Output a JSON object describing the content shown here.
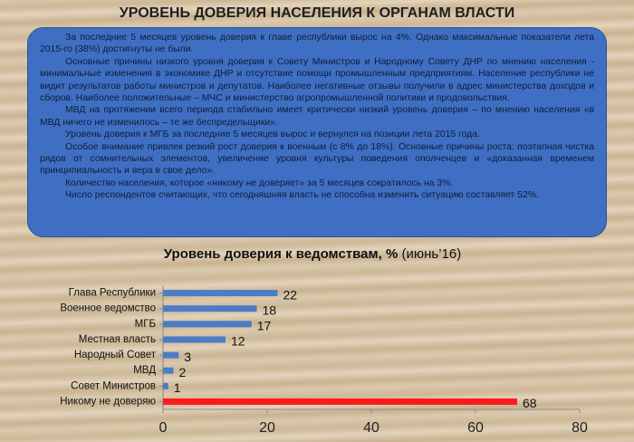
{
  "header": {
    "title": "УРОВЕНЬ ДОВЕРИЯ НАСЕЛЕНИЯ К ОРГАНАМ ВЛАСТИ"
  },
  "summary": {
    "paragraphs": [
      "За последние 5 месяцев уровень доверия к главе республики вырос на 4%. Однако максимальные показатели лета 2015-го (38%) достигнуты не были.",
      "Основные причины низкого уровня доверия к Совету Министров и Народному Совету ДНР по мнению населения - минимальные изменения в экономике ДНР и отсутствие помощи промышленным предприятиям. Население республики не видит результатов работы министров и депутатов. Наиболее негативные отзывы получили в адрес министерства доходов и сборов. Наиболее положительные – МЧС и министерство агропромышленной политики и продовольствия.",
      "МВД на протяжении всего периода стабильно имеет критически низкий уровень доверия – по мнению населения «в МВД  ничего не изменилось – те же беспредельщики».",
      "Уровень доверия к МГБ за последние 5 месяцев вырос и вернулся на позиции лета 2015 года.",
      "Особое внимание привлек резкий рост доверия к военным (с 8% до 18%). Основные причины роста:  поэтапная чистка рядов от сомнительных элементов, увеличение уровня культуры поведения ополченцев и «доказанная временем принципиальность и вера в свое дело».",
      "Количество населения, которое «никому не доверяет»  за 5 месяцев сократилось на 3%.",
      "Число респондентов считающих, что сегодняшняя власть не способна изменить ситуацию составляет 52%."
    ]
  },
  "chart_data": {
    "type": "hbar",
    "title": "Уровень доверия к ведомствам, %",
    "subtitle": "(июнь’16)",
    "categories": [
      "Глава Республики",
      "Военное ведомство",
      "МГБ",
      "Местная власть",
      "Народный Совет",
      "МВД",
      "Совет Министров",
      "Никому не доверяю"
    ],
    "values": [
      22,
      18,
      17,
      12,
      3,
      2,
      1,
      68
    ],
    "colors": [
      "#4a7cc7",
      "#4a7cc7",
      "#4a7cc7",
      "#4a7cc7",
      "#4a7cc7",
      "#4a7cc7",
      "#4a7cc7",
      "#ff1a1a"
    ],
    "xlim": [
      0,
      80
    ],
    "xticks": [
      0,
      20,
      40,
      60,
      80
    ]
  }
}
